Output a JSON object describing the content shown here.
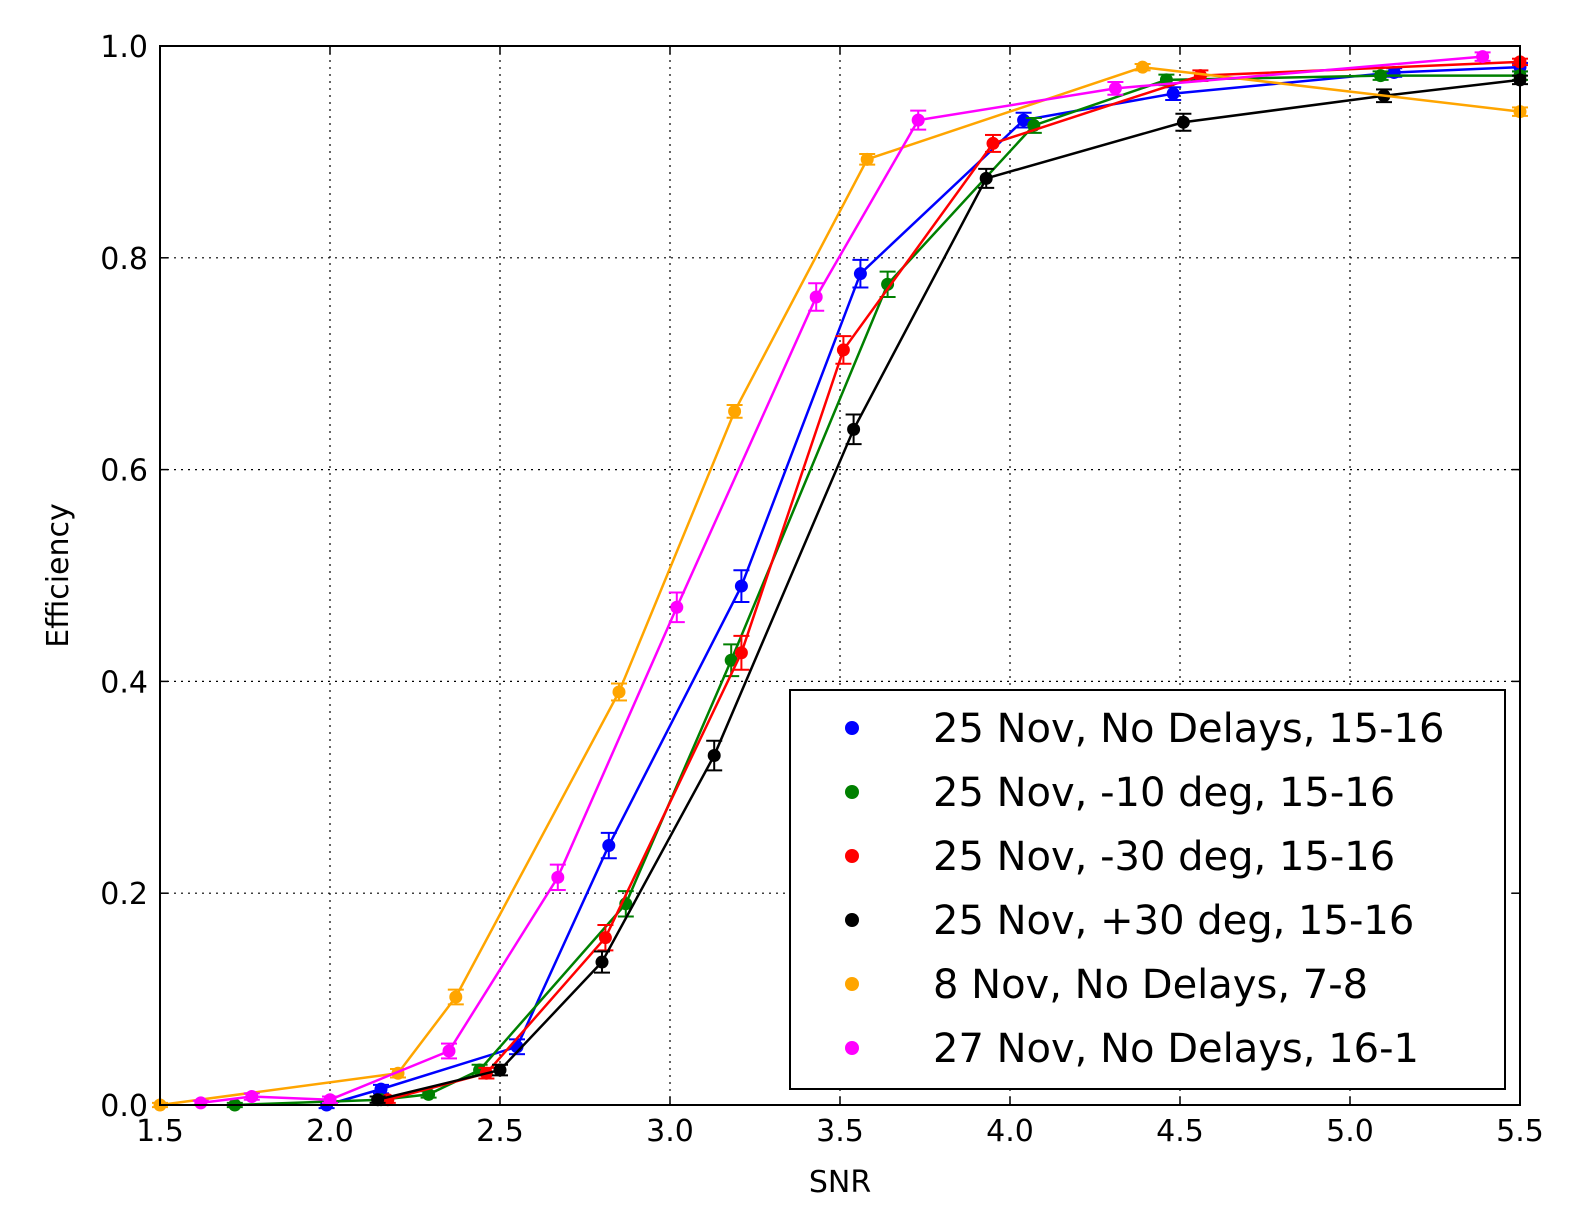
{
  "chart_data": {
    "type": "line",
    "title": "",
    "xlabel": "SNR",
    "ylabel": "Efficiency",
    "xlim": [
      1.5,
      5.5
    ],
    "ylim": [
      0.0,
      1.0
    ],
    "xticks": [
      "1.5",
      "2.0",
      "2.5",
      "3.0",
      "3.5",
      "4.0",
      "4.5",
      "5.0",
      "5.5"
    ],
    "yticks": [
      "0.0",
      "0.2",
      "0.4",
      "0.6",
      "0.8",
      "1.0"
    ],
    "grid": true,
    "grid_style": "dotted",
    "legend_position": "lower-right",
    "series": [
      {
        "name": "25 Nov, No Delays, 15-16",
        "color": "#0000ff",
        "x": [
          1.99,
          2.15,
          2.55,
          2.82,
          3.21,
          3.56,
          4.04,
          4.48,
          5.13,
          5.5
        ],
        "y": [
          0.0,
          0.015,
          0.055,
          0.245,
          0.49,
          0.785,
          0.93,
          0.955,
          0.975,
          0.98
        ],
        "err": [
          0.003,
          0.004,
          0.007,
          0.012,
          0.015,
          0.013,
          0.007,
          0.006,
          0.004,
          0.004
        ]
      },
      {
        "name": "25 Nov, -10 deg, 15-16",
        "color": "#008000",
        "x": [
          1.72,
          2.15,
          2.29,
          2.44,
          2.87,
          3.18,
          3.64,
          4.07,
          4.46,
          5.09,
          5.5
        ],
        "y": [
          0.0,
          0.005,
          0.01,
          0.033,
          0.19,
          0.42,
          0.775,
          0.925,
          0.968,
          0.972,
          0.972
        ],
        "err": [
          0.002,
          0.003,
          0.003,
          0.005,
          0.012,
          0.015,
          0.012,
          0.007,
          0.005,
          0.004,
          0.004
        ]
      },
      {
        "name": "25 Nov, -30 deg, 15-16",
        "color": "#ff0000",
        "x": [
          2.17,
          2.46,
          2.81,
          3.21,
          3.51,
          3.95,
          4.56,
          5.5
        ],
        "y": [
          0.005,
          0.03,
          0.158,
          0.427,
          0.713,
          0.908,
          0.972,
          0.985
        ],
        "err": [
          0.003,
          0.005,
          0.012,
          0.016,
          0.013,
          0.008,
          0.005,
          0.003
        ]
      },
      {
        "name": "25 Nov, +30 deg, 15-16",
        "color": "#000000",
        "x": [
          2.14,
          2.5,
          2.8,
          3.13,
          3.54,
          3.93,
          4.51,
          5.1,
          5.5
        ],
        "y": [
          0.005,
          0.033,
          0.135,
          0.33,
          0.638,
          0.875,
          0.928,
          0.953,
          0.968
        ],
        "err": [
          0.003,
          0.005,
          0.01,
          0.014,
          0.014,
          0.009,
          0.008,
          0.006,
          0.004
        ]
      },
      {
        "name": "8 Nov, No Delays, 7-8",
        "color": "#ffa500",
        "x": [
          1.5,
          2.2,
          2.37,
          2.85,
          3.19,
          3.58,
          4.39,
          5.5
        ],
        "y": [
          0.0,
          0.03,
          0.102,
          0.39,
          0.655,
          0.893,
          0.98,
          0.938
        ],
        "err": [
          0.002,
          0.004,
          0.007,
          0.008,
          0.006,
          0.005,
          0.003,
          0.004
        ]
      },
      {
        "name": "27 Nov, No Delays, 16-1",
        "color": "#ff00ff",
        "x": [
          1.62,
          1.77,
          2.0,
          2.35,
          2.67,
          3.02,
          3.43,
          3.73,
          4.31,
          5.39
        ],
        "y": [
          0.002,
          0.008,
          0.005,
          0.051,
          0.215,
          0.47,
          0.763,
          0.93,
          0.96,
          0.99
        ],
        "err": [
          0.002,
          0.003,
          0.003,
          0.007,
          0.012,
          0.014,
          0.013,
          0.009,
          0.006,
          0.004
        ]
      }
    ]
  }
}
